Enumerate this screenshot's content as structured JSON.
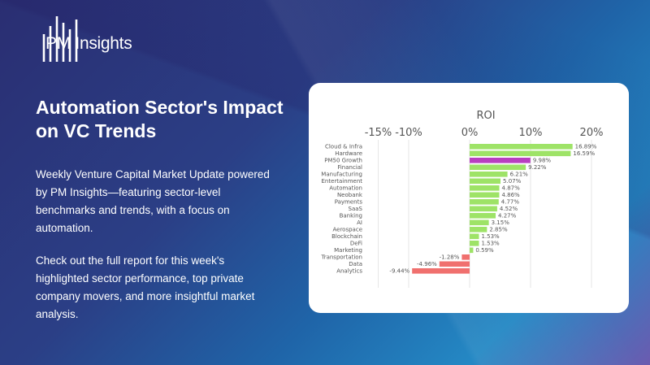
{
  "brand": {
    "name": "PM Insights"
  },
  "headline": "Automation Sector's Impact on VC Trends",
  "paragraphs": [
    "Weekly Venture Capital Market Update powered by PM Insights—featuring sector-level benchmarks and trends, with a focus on automation.",
    "Check out the full report for this week's highlighted sector performance, top private company movers, and more insightful market analysis."
  ],
  "colors": {
    "positive": "#9ee367",
    "highlight": "#b83fc0",
    "negative": "#f0706e"
  },
  "chart_data": {
    "type": "bar",
    "orientation": "horizontal",
    "xlabel": "ROI",
    "xlim": [
      -15,
      20
    ],
    "ticks": [
      -15,
      -10,
      0,
      10,
      20
    ],
    "tick_labels": [
      "-15%",
      "-10%",
      "0%",
      "10%",
      "20%"
    ],
    "grid": true,
    "highlight_category": "PM50 Growth",
    "categories": [
      "Cloud & Infra",
      "Hardware",
      "PM50 Growth",
      "Financial",
      "Manufacturing",
      "Entertainment",
      "Automation",
      "Neobank",
      "Payments",
      "SaaS",
      "Banking",
      "AI",
      "Aerospace",
      "Blockchain",
      "DeFi",
      "Marketing",
      "Transportation",
      "Data",
      "Analytics"
    ],
    "values": [
      16.89,
      16.59,
      9.98,
      9.22,
      6.21,
      5.07,
      4.87,
      4.86,
      4.77,
      4.52,
      4.27,
      3.15,
      2.85,
      1.53,
      1.53,
      0.59,
      -1.28,
      -4.96,
      -9.44
    ],
    "value_labels": [
      "16.89%",
      "16.59%",
      "9.98%",
      "9.22%",
      "6.21%",
      "5.07%",
      "4.87%",
      "4.86%",
      "4.77%",
      "4.52%",
      "4.27%",
      "3.15%",
      "2.85%",
      "1.53%",
      "1.53%",
      "0.59%",
      "-1.28%",
      "-4.96%",
      "-9.44%"
    ]
  }
}
